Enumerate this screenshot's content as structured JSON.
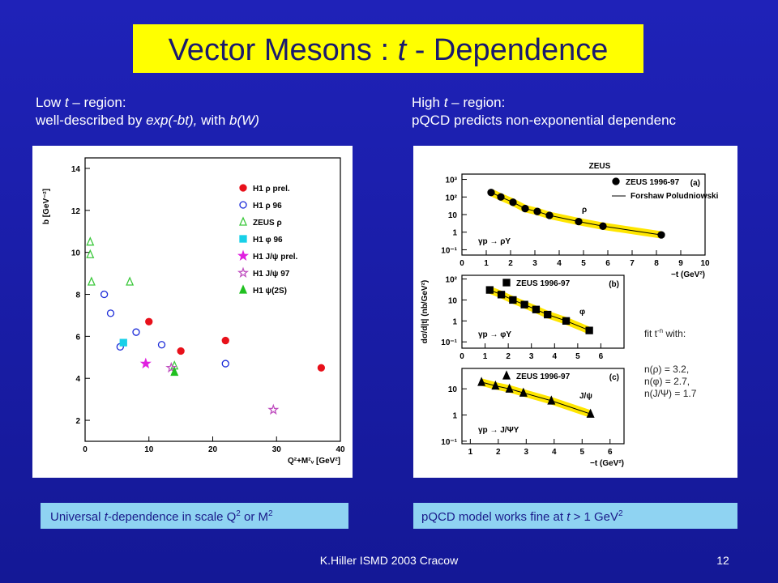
{
  "title": [
    "Vector Mesons : ",
    "t",
    " - Dependence"
  ],
  "left_text": {
    "line1": [
      "Low  ",
      "t",
      " – region:"
    ],
    "line2": [
      "well-described by ",
      "exp(-bt),",
      " with ",
      "b(W)"
    ]
  },
  "right_text": {
    "line1": [
      "High ",
      "t",
      " – region:"
    ],
    "line2": "pQCD predicts non-exponential dependenc"
  },
  "left_caption": [
    "Universal ",
    "t",
    "-dependence in scale Q",
    "2",
    " or M",
    "2"
  ],
  "right_caption": [
    "pQCD model works fine at  ",
    "t",
    " > 1 GeV",
    "2"
  ],
  "fit_note": {
    "head": [
      "fit  t",
      "-n",
      " with:"
    ],
    "lines": [
      "n(ρ)  = 3.2,",
      "n(φ) = 2.7,",
      "n(J/Ψ) = 1.7"
    ]
  },
  "footer": "K.Hiller ISMD 2003   Cracow",
  "page_number": "12",
  "charts": [
    {
      "type": "scatter",
      "ylabel": "b  [GeV⁻²]",
      "xlabel": "Q²+M²ᵥ [GeV²]",
      "xlim": [
        0,
        40
      ],
      "ylim": [
        1,
        14.5
      ],
      "xticks": [
        0,
        10,
        20,
        30,
        40
      ],
      "yticks": [
        2,
        4,
        6,
        8,
        10,
        12,
        14
      ],
      "series": [
        {
          "name": "H1 ρ prel.",
          "color": "#e8101a",
          "marker": "circle",
          "filled": true,
          "x": [
            10,
            15,
            22,
            37
          ],
          "values": [
            6.7,
            5.3,
            5.8,
            4.5
          ]
        },
        {
          "name": "H1 ρ 96",
          "color": "#1a2ad8",
          "marker": "circle",
          "filled": false,
          "x": [
            3,
            4,
            5.5,
            8,
            12,
            22
          ],
          "values": [
            8.0,
            7.1,
            5.5,
            6.2,
            5.6,
            4.7
          ]
        },
        {
          "name": "ZEUS ρ",
          "color": "#3cc83c",
          "marker": "triangle",
          "filled": false,
          "x": [
            0.8,
            0.8,
            1,
            7,
            14
          ],
          "values": [
            10.5,
            9.9,
            8.6,
            8.6,
            4.6
          ]
        },
        {
          "name": "H1 φ 96",
          "color": "#18d0e8",
          "marker": "square",
          "filled": true,
          "x": [
            6
          ],
          "values": [
            5.7
          ]
        },
        {
          "name": "H1 J/ψ prel.",
          "color": "#e020e0",
          "marker": "star",
          "filled": true,
          "x": [
            9.5
          ],
          "values": [
            4.7
          ]
        },
        {
          "name": "H1 J/ψ 97",
          "color": "#c050c0",
          "marker": "star",
          "filled": false,
          "x": [
            13.5,
            29.5
          ],
          "values": [
            4.5,
            2.5
          ]
        },
        {
          "name": "H1 ψ(2S)",
          "color": "#20c020",
          "marker": "triangle",
          "filled": true,
          "x": [
            14
          ],
          "values": [
            4.3
          ]
        }
      ]
    },
    {
      "type": "scatter",
      "title": "ZEUS",
      "log_y": true,
      "xlabel": "−t (GeV²)",
      "panel_label": "(a)",
      "process": "γp → ρY",
      "annotation": "ρ",
      "model_label": "Forshaw Poludniowski",
      "xlim": [
        0,
        10
      ],
      "ylim": [
        0.05,
        2000
      ],
      "xticks": [
        0,
        1,
        2,
        3,
        4,
        5,
        6,
        7,
        8,
        9,
        10
      ],
      "yticks": [
        {
          "value": 0.1,
          "label": "10⁻¹"
        },
        1,
        10,
        {
          "value": 100,
          "label": "10²"
        },
        {
          "value": 1000,
          "label": "10³"
        }
      ],
      "series": [
        {
          "name": "ZEUS 1996-97",
          "color": "#000000",
          "marker": "circle",
          "filled": true,
          "x": [
            1.2,
            1.6,
            2.1,
            2.6,
            3.1,
            3.6,
            4.8,
            5.8,
            8.2
          ],
          "values": [
            180,
            100,
            50,
            22,
            15,
            9,
            4,
            2.2,
            0.7
          ]
        }
      ]
    },
    {
      "type": "scatter",
      "log_y": true,
      "ylabel": "dσ/d|t| (nb/GeV²)",
      "panel_label": "(b)",
      "process": "γp → φY",
      "annotation": "φ",
      "xlim": [
        0,
        7
      ],
      "ylim": [
        0.05,
        150
      ],
      "xticks": [
        0,
        1,
        2,
        3,
        4,
        5,
        6
      ],
      "yticks": [
        {
          "value": 0.1,
          "label": "10⁻¹"
        },
        1,
        10,
        {
          "value": 100,
          "label": "10²"
        }
      ],
      "series": [
        {
          "name": "ZEUS 1996-97",
          "color": "#000000",
          "marker": "square",
          "filled": true,
          "x": [
            1.2,
            1.7,
            2.2,
            2.7,
            3.2,
            3.7,
            4.5,
            5.5
          ],
          "values": [
            30,
            18,
            10,
            6,
            3.5,
            2,
            1,
            0.35
          ]
        }
      ]
    },
    {
      "type": "scatter",
      "log_y": true,
      "xlabel": "−t (GeV²)",
      "panel_label": "(c)",
      "process": "γp → J/ΨY",
      "annotation": "J/ψ",
      "xlim": [
        0.7,
        6.5
      ],
      "ylim": [
        0.08,
        60
      ],
      "xticks": [
        1,
        2,
        3,
        4,
        5,
        6
      ],
      "yticks": [
        {
          "value": 0.1,
          "label": "10⁻¹"
        },
        1,
        10
      ],
      "series": [
        {
          "name": "ZEUS 1996-97",
          "color": "#000000",
          "marker": "triangle",
          "filled": true,
          "x": [
            1.4,
            1.9,
            2.4,
            2.9,
            3.9,
            5.3
          ],
          "values": [
            18,
            13,
            10,
            7,
            3.5,
            1.1
          ]
        }
      ]
    }
  ]
}
